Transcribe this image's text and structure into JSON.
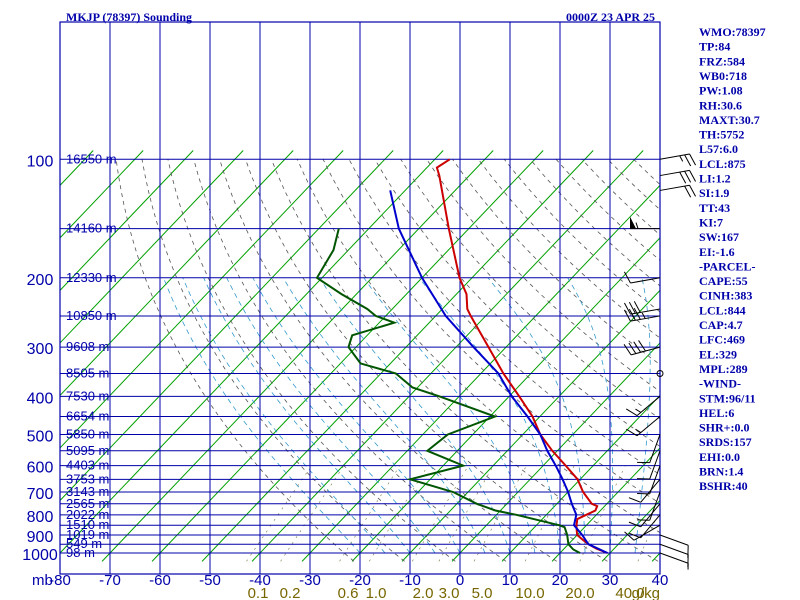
{
  "header": {
    "title": "MKJP (78397) Sounding",
    "datetime": "0000Z 23 APR 25"
  },
  "colors": {
    "axes": "#0000aa",
    "label_text": "#0000aa",
    "temperature": "#cc0000",
    "dewpoint": "#005500",
    "parcel": "#0000cc",
    "isotherm": "#00a000",
    "dry_adiabat": "#555555",
    "moist_adiabat": "#3399cc",
    "mixing_ratio_label": "#776600"
  },
  "chart_data": {
    "type": "line",
    "subtype": "skew-T log-P sounding",
    "x_axis": {
      "unit_label": "mb",
      "ticks": [
        -80,
        -70,
        -60,
        -50,
        -40,
        -30,
        -20,
        -10,
        0,
        10,
        20,
        30,
        40
      ],
      "range": [
        -80,
        40
      ]
    },
    "y_axis": {
      "scale": "log",
      "ticks": [
        100,
        200,
        300,
        400,
        500,
        600,
        700,
        800,
        900,
        1000
      ],
      "range": [
        100,
        1050
      ]
    },
    "grid": true,
    "height_labels": [
      {
        "p": 100,
        "label": "16550 m"
      },
      {
        "p": 150,
        "label": "14160 m"
      },
      {
        "p": 200,
        "label": "12330 m"
      },
      {
        "p": 250,
        "label": "10850 m"
      },
      {
        "p": 300,
        "label": "9608 m"
      },
      {
        "p": 350,
        "label": "8505 m"
      },
      {
        "p": 400,
        "label": "7530 m"
      },
      {
        "p": 450,
        "label": "6654 m"
      },
      {
        "p": 500,
        "label": "5850 m"
      },
      {
        "p": 550,
        "label": "5095 m"
      },
      {
        "p": 600,
        "label": "4403 m"
      },
      {
        "p": 650,
        "label": "3753 m"
      },
      {
        "p": 700,
        "label": "3143 m"
      },
      {
        "p": 750,
        "label": "2565 m"
      },
      {
        "p": 800,
        "label": "2022 m"
      },
      {
        "p": 850,
        "label": "1510 m"
      },
      {
        "p": 900,
        "label": "1019 m"
      },
      {
        "p": 950,
        "label": "549 m"
      },
      {
        "p": 1000,
        "label": "98 m"
      }
    ],
    "mixing_ratio_labels": [
      "0.1",
      "0.2",
      "0.6",
      "1.0",
      "2.0",
      "3.0",
      "5.0",
      "10.0",
      "20.0",
      "40.0"
    ],
    "mixing_ratio_unit": "g/kg",
    "series": [
      {
        "key": "temperature",
        "points": [
          [
            1000,
            29.5
          ],
          [
            975,
            26.5
          ],
          [
            950,
            24
          ],
          [
            925,
            22
          ],
          [
            900,
            20
          ],
          [
            875,
            19
          ],
          [
            850,
            18
          ],
          [
            820,
            17
          ],
          [
            800,
            18
          ],
          [
            780,
            19
          ],
          [
            760,
            18.5
          ],
          [
            750,
            17
          ],
          [
            700,
            13
          ],
          [
            650,
            9.5
          ],
          [
            600,
            4.5
          ],
          [
            550,
            -1
          ],
          [
            500,
            -6.5
          ],
          [
            450,
            -11.5
          ],
          [
            400,
            -18
          ],
          [
            350,
            -25.5
          ],
          [
            300,
            -33.5
          ],
          [
            250,
            -43
          ],
          [
            240,
            -45
          ],
          [
            220,
            -48
          ],
          [
            200,
            -52.5
          ],
          [
            150,
            -64
          ],
          [
            110,
            -76
          ],
          [
            105,
            -78
          ],
          [
            100,
            -77
          ]
        ]
      },
      {
        "key": "dewpoint",
        "points": [
          [
            1000,
            24
          ],
          [
            980,
            22
          ],
          [
            950,
            20
          ],
          [
            900,
            18
          ],
          [
            860,
            16
          ],
          [
            850,
            14.5
          ],
          [
            800,
            4
          ],
          [
            780,
            -1
          ],
          [
            750,
            -6
          ],
          [
            700,
            -13
          ],
          [
            650,
            -24
          ],
          [
            600,
            -16
          ],
          [
            550,
            -26
          ],
          [
            500,
            -25
          ],
          [
            450,
            -19
          ],
          [
            400,
            -34
          ],
          [
            380,
            -41
          ],
          [
            350,
            -47
          ],
          [
            330,
            -56
          ],
          [
            300,
            -61.5
          ],
          [
            280,
            -63
          ],
          [
            260,
            -57
          ],
          [
            250,
            -62
          ],
          [
            240,
            -65
          ],
          [
            220,
            -73
          ],
          [
            200,
            -81
          ],
          [
            170,
            -83
          ],
          [
            150,
            -86
          ]
        ]
      },
      {
        "key": "parcel",
        "points": [
          [
            1000,
            29.5
          ],
          [
            950,
            24
          ],
          [
            900,
            21
          ],
          [
            850,
            17.5
          ],
          [
            800,
            16
          ],
          [
            750,
            13
          ],
          [
            700,
            10
          ],
          [
            650,
            6.5
          ],
          [
            600,
            2.5
          ],
          [
            550,
            -2
          ],
          [
            500,
            -6.5
          ],
          [
            450,
            -12.5
          ],
          [
            400,
            -19.5
          ],
          [
            350,
            -26.5
          ],
          [
            300,
            -36.5
          ],
          [
            250,
            -48
          ],
          [
            200,
            -60
          ],
          [
            150,
            -74
          ],
          [
            120,
            -83
          ]
        ]
      }
    ],
    "wind_barbs": [
      {
        "p": 100,
        "spd": 25,
        "dir": 80
      },
      {
        "p": 110,
        "spd": 30,
        "dir": 80
      },
      {
        "p": 120,
        "spd": 20,
        "dir": 80
      },
      {
        "p": 150,
        "spd": 55,
        "dir": 270
      },
      {
        "p": 200,
        "spd": 10,
        "dir": 260
      },
      {
        "p": 240,
        "spd": 30,
        "dir": 260
      },
      {
        "p": 250,
        "spd": 35,
        "dir": 260
      },
      {
        "p": 300,
        "spd": 40,
        "dir": 255
      },
      {
        "p": 350,
        "spd": 0,
        "dir": 0
      },
      {
        "p": 400,
        "spd": 15,
        "dir": 230
      },
      {
        "p": 450,
        "spd": 15,
        "dir": 230
      },
      {
        "p": 500,
        "spd": 10,
        "dir": 200
      },
      {
        "p": 550,
        "spd": 10,
        "dir": 200
      },
      {
        "p": 600,
        "spd": 10,
        "dir": 200
      },
      {
        "p": 650,
        "spd": 10,
        "dir": 220
      },
      {
        "p": 700,
        "spd": 10,
        "dir": 200
      },
      {
        "p": 750,
        "spd": 10,
        "dir": 220
      },
      {
        "p": 800,
        "spd": 10,
        "dir": 220
      },
      {
        "p": 850,
        "spd": 10,
        "dir": 240
      },
      {
        "p": 900,
        "spd": 10,
        "dir": 110
      },
      {
        "p": 950,
        "spd": 10,
        "dir": 110
      },
      {
        "p": 1000,
        "spd": 5,
        "dir": 110
      }
    ]
  },
  "indices": [
    "WMO:78397",
    "TP:84",
    "FRZ:584",
    "WB0:718",
    "PW:1.08",
    "RH:30.6",
    "MAXT:30.7",
    "TH:5752",
    "L57:6.0",
    "LCL:875",
    "LI:1.2",
    "SI:1.9",
    "TT:43",
    "KI:7",
    "SW:167",
    "EI:-1.6",
    "-PARCEL-",
    "CAPE:55",
    "CINH:383",
    "LCL:844",
    "CAP:4.7",
    "LFC:469",
    "EL:329",
    "MPL:289",
    "-WIND-",
    "STM:96/11",
    "HEL:6",
    "SHR+:0.0",
    "SRDS:157",
    "EHI:0.0",
    "BRN:1.4",
    "BSHR:40"
  ]
}
